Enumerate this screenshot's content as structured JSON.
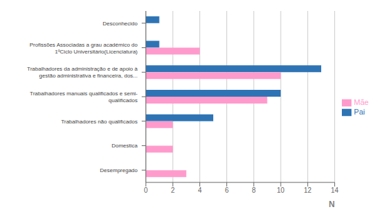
{
  "chart_data": {
    "type": "bar",
    "orientation": "horizontal",
    "categories": [
      "Desconhecido",
      "Profissões Associadas a grau académico do\n1ºCiclo Universitário(Licenciatura)",
      "Trabalhadores da administração e de apoio à\ngestão administrativa e financeira, dos...",
      "Trabalhadores manuais qualificados e semi-\nqualificados",
      "Trabalhadores não qualificados",
      "Domestica",
      "Desempregado"
    ],
    "series": [
      {
        "name": "Pai",
        "color": "#2E74B5",
        "values": [
          1,
          1,
          13,
          10,
          5,
          0,
          0
        ]
      },
      {
        "name": "Mãe",
        "color": "#FF9BCC",
        "values": [
          0,
          4,
          10,
          9,
          2,
          2,
          3
        ]
      }
    ],
    "xlabel": "N",
    "xlim": [
      0,
      14
    ],
    "xticks": [
      0,
      2,
      4,
      6,
      8,
      10,
      12,
      14
    ],
    "grid": true,
    "legend": "right"
  }
}
